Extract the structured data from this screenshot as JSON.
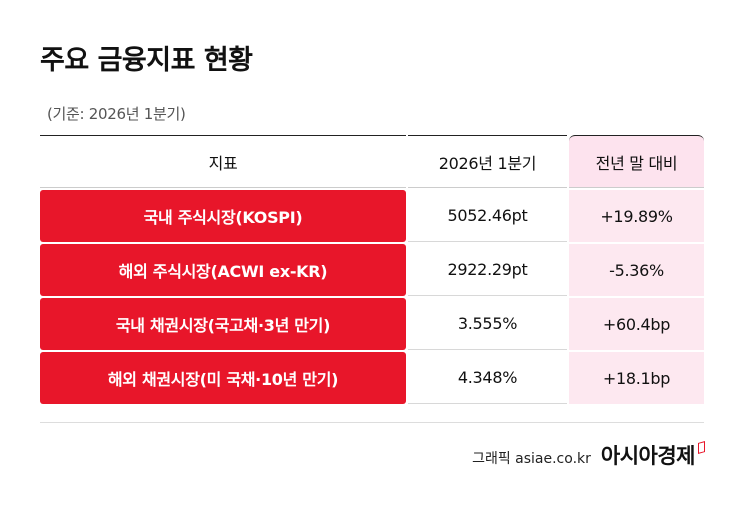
{
  "header": {
    "title": "주요 금융지표 현황",
    "subtitle": "(기준: 2026년 1분기)"
  },
  "table": {
    "columns": [
      "지표",
      "2026년 1분기",
      "전년 말 대비"
    ],
    "rows": [
      {
        "indicator": "국내 주식시장(KOSPI)",
        "value": "5052.46pt",
        "change": "+19.89%"
      },
      {
        "indicator": "해외 주식시장(ACWI ex-KR)",
        "value": "2922.29pt",
        "change": "-5.36%"
      },
      {
        "indicator": "국내 채권시장(국고채·3년 만기)",
        "value": "3.555%",
        "change": "+60.4bp"
      },
      {
        "indicator": "해외 채권시장(미 국채·10년 만기)",
        "value": "4.348%",
        "change": "+18.1bp"
      }
    ]
  },
  "footer": {
    "credit": "그래픽  asiae.co.kr",
    "logo": "아시아경제"
  },
  "colors": {
    "accent_red": "#e8162a",
    "pink_bg": "#fde8f0"
  }
}
